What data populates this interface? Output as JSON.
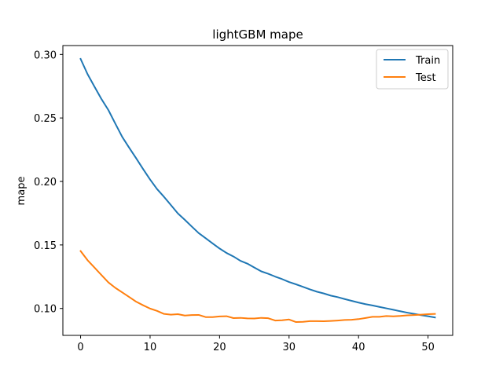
{
  "chart_data": {
    "type": "line",
    "title": "lightGBM mape",
    "xlabel": "",
    "ylabel": "mape",
    "xlim": [
      -2.55,
      53.55
    ],
    "ylim": [
      0.0788,
      0.307
    ],
    "xticks": [
      0,
      10,
      20,
      30,
      40,
      50
    ],
    "yticks": [
      0.1,
      0.15,
      0.2,
      0.25,
      0.3
    ],
    "grid": false,
    "legend_position": "top-right",
    "x": [
      0,
      1,
      2,
      3,
      4,
      5,
      6,
      7,
      8,
      9,
      10,
      11,
      12,
      13,
      14,
      15,
      16,
      17,
      18,
      19,
      20,
      21,
      22,
      23,
      24,
      25,
      26,
      27,
      28,
      29,
      30,
      31,
      32,
      33,
      34,
      35,
      36,
      37,
      38,
      39,
      40,
      41,
      42,
      43,
      44,
      45,
      46,
      47,
      48,
      49,
      50,
      51
    ],
    "series": [
      {
        "name": "Train",
        "color": "#1f77b4",
        "values": [
          0.2965,
          0.2845,
          0.2746,
          0.2649,
          0.2562,
          0.2455,
          0.235,
          0.2265,
          0.2182,
          0.2097,
          0.2015,
          0.194,
          0.1879,
          0.1814,
          0.1748,
          0.1698,
          0.1645,
          0.1593,
          0.1553,
          0.1512,
          0.1472,
          0.1437,
          0.1409,
          0.1375,
          0.1353,
          0.1322,
          0.1292,
          0.1273,
          0.1251,
          0.1231,
          0.1208,
          0.119,
          0.117,
          0.115,
          0.1132,
          0.1118,
          0.1101,
          0.1089,
          0.1074,
          0.106,
          0.1046,
          0.1034,
          0.1024,
          0.1012,
          0.1001,
          0.099,
          0.0978,
          0.0967,
          0.0957,
          0.0947,
          0.0939,
          0.0929
        ]
      },
      {
        "name": "Test",
        "color": "#ff7f0e",
        "values": [
          0.1452,
          0.138,
          0.1322,
          0.1263,
          0.1205,
          0.1162,
          0.1126,
          0.109,
          0.1053,
          0.1025,
          0.0999,
          0.0981,
          0.0957,
          0.0951,
          0.0955,
          0.0944,
          0.0948,
          0.0949,
          0.0932,
          0.0932,
          0.0937,
          0.0939,
          0.0924,
          0.0926,
          0.0922,
          0.0921,
          0.0926,
          0.0923,
          0.0905,
          0.0907,
          0.0913,
          0.0893,
          0.0895,
          0.09,
          0.09,
          0.0899,
          0.0902,
          0.0905,
          0.0909,
          0.0911,
          0.0916,
          0.0925,
          0.0934,
          0.0934,
          0.094,
          0.0938,
          0.0941,
          0.0946,
          0.0948,
          0.0951,
          0.0955,
          0.0957
        ]
      }
    ]
  }
}
